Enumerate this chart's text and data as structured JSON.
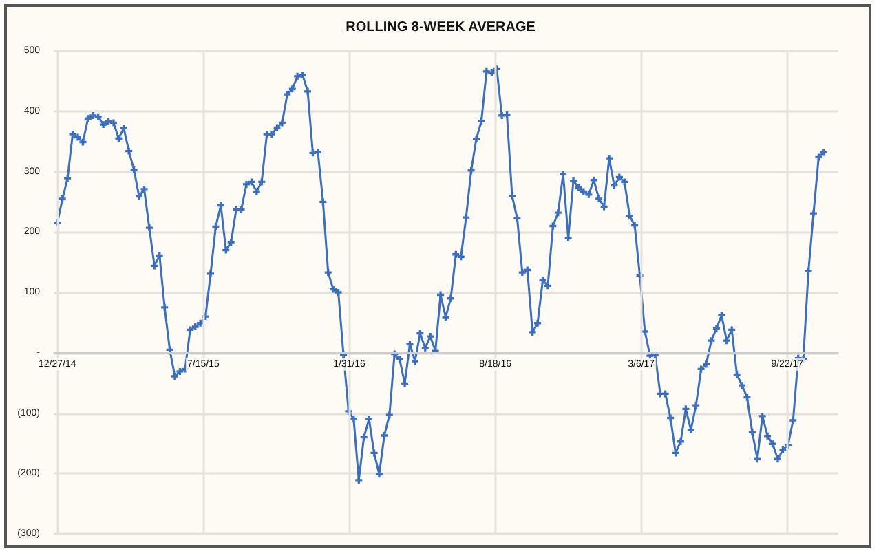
{
  "chart_data": {
    "type": "line",
    "title": "ROLLING 8-WEEK AVERAGE",
    "x": [
      "2014-12-27",
      "2015-01-03",
      "2015-01-10",
      "2015-01-17",
      "2015-01-24",
      "2015-01-31",
      "2015-02-07",
      "2015-02-14",
      "2015-02-21",
      "2015-02-28",
      "2015-03-07",
      "2015-03-14",
      "2015-03-21",
      "2015-03-28",
      "2015-04-04",
      "2015-04-11",
      "2015-04-18",
      "2015-04-25",
      "2015-05-02",
      "2015-05-09",
      "2015-05-16",
      "2015-05-23",
      "2015-05-30",
      "2015-06-06",
      "2015-06-13",
      "2015-06-20",
      "2015-06-27",
      "2015-07-04",
      "2015-07-11",
      "2015-07-18",
      "2015-07-25",
      "2015-08-01",
      "2015-08-08",
      "2015-08-15",
      "2015-08-22",
      "2015-08-29",
      "2015-09-05",
      "2015-09-12",
      "2015-09-19",
      "2015-09-26",
      "2015-10-03",
      "2015-10-10",
      "2015-10-17",
      "2015-10-24",
      "2015-10-31",
      "2015-11-07",
      "2015-11-14",
      "2015-11-21",
      "2015-11-28",
      "2015-12-05",
      "2015-12-12",
      "2015-12-19",
      "2015-12-26",
      "2016-01-02",
      "2016-01-09",
      "2016-01-16",
      "2016-01-23",
      "2016-01-30",
      "2016-02-06",
      "2016-02-13",
      "2016-02-20",
      "2016-02-27",
      "2016-03-05",
      "2016-03-12",
      "2016-03-19",
      "2016-03-26",
      "2016-04-02",
      "2016-04-09",
      "2016-04-16",
      "2016-04-23",
      "2016-04-30",
      "2016-05-07",
      "2016-05-14",
      "2016-05-21",
      "2016-05-28",
      "2016-06-04",
      "2016-06-11",
      "2016-06-18",
      "2016-06-25",
      "2016-07-02",
      "2016-07-09",
      "2016-07-16",
      "2016-07-23",
      "2016-07-30",
      "2016-08-06",
      "2016-08-13",
      "2016-08-20",
      "2016-08-27",
      "2016-09-03",
      "2016-09-10",
      "2016-09-17",
      "2016-09-24",
      "2016-10-01",
      "2016-10-08",
      "2016-10-15",
      "2016-10-22",
      "2016-10-29",
      "2016-11-05",
      "2016-11-12",
      "2016-11-19",
      "2016-11-26",
      "2016-12-03",
      "2016-12-10",
      "2016-12-17",
      "2016-12-24",
      "2016-12-31",
      "2017-01-07",
      "2017-01-14",
      "2017-01-21",
      "2017-01-28",
      "2017-02-04",
      "2017-02-11",
      "2017-02-18",
      "2017-02-25",
      "2017-03-04",
      "2017-03-11",
      "2017-03-18",
      "2017-03-25",
      "2017-04-01",
      "2017-04-08",
      "2017-04-15",
      "2017-04-22",
      "2017-04-29",
      "2017-05-06",
      "2017-05-13",
      "2017-05-20",
      "2017-05-27",
      "2017-06-03",
      "2017-06-10",
      "2017-06-17",
      "2017-06-24",
      "2017-07-01",
      "2017-07-08",
      "2017-07-15",
      "2017-07-22",
      "2017-07-29",
      "2017-08-05",
      "2017-08-12",
      "2017-08-19",
      "2017-08-26",
      "2017-09-02",
      "2017-09-09",
      "2017-09-16",
      "2017-09-23",
      "2017-09-30",
      "2017-10-07",
      "2017-10-14",
      "2017-10-21",
      "2017-10-28",
      "2017-11-04",
      "2017-11-11"
    ],
    "series": [
      {
        "color": "#3a6fc4",
        "values": [
          215,
          255,
          289,
          362,
          357,
          349,
          388,
          393,
          391,
          378,
          383,
          381,
          355,
          372,
          334,
          303,
          259,
          271,
          207,
          144,
          161,
          75,
          5,
          -39,
          -31,
          -27,
          38,
          43,
          49,
          60,
          131,
          209,
          244,
          170,
          183,
          237,
          237,
          279,
          283,
          267,
          283,
          362,
          362,
          373,
          381,
          428,
          437,
          458,
          460,
          433,
          331,
          332,
          250,
          133,
          105,
          100,
          -3,
          -97,
          -110,
          -211,
          -140,
          -110,
          -166,
          -201,
          -137,
          -103,
          -2,
          -11,
          -51,
          14,
          -14,
          32,
          8,
          27,
          3,
          96,
          59,
          90,
          163,
          159,
          224,
          302,
          354,
          384,
          466,
          464,
          470,
          393,
          394,
          260,
          223,
          133,
          137,
          34,
          49,
          120,
          111,
          210,
          232,
          296,
          190,
          285,
          274,
          267,
          262,
          286,
          255,
          242,
          322,
          277,
          291,
          283,
          227,
          211,
          128,
          35,
          -5,
          -4,
          -68,
          -68,
          -108,
          -166,
          -147,
          -93,
          -128,
          -87,
          -27,
          -19,
          20,
          40,
          62,
          20,
          38,
          -36,
          -54,
          -74,
          -131,
          -176,
          -105,
          -138,
          -151,
          -176,
          -161,
          -153,
          -112,
          -9,
          -11,
          135,
          231,
          324,
          332
        ]
      }
    ],
    "xlim": [
      "2014-12-22",
      "2017-12-01"
    ],
    "xticks": [
      {
        "value": "2014-12-27",
        "label": "12/27/14"
      },
      {
        "value": "2015-07-15",
        "label": "7/15/15"
      },
      {
        "value": "2016-01-31",
        "label": "1/31/16"
      },
      {
        "value": "2016-08-18",
        "label": "8/18/16"
      },
      {
        "value": "2017-03-06",
        "label": "3/6/17"
      },
      {
        "value": "2017-09-22",
        "label": "9/22/17"
      }
    ],
    "ylim": [
      -300,
      500
    ],
    "yticks": [
      {
        "value": -300,
        "label": "(300)"
      },
      {
        "value": -200,
        "label": "(200)"
      },
      {
        "value": -100,
        "label": "(100)"
      },
      {
        "value": 0,
        "label": "-"
      },
      100,
      200,
      300,
      400,
      500
    ],
    "grid": true,
    "marker": "cross",
    "line_style": "solid"
  }
}
